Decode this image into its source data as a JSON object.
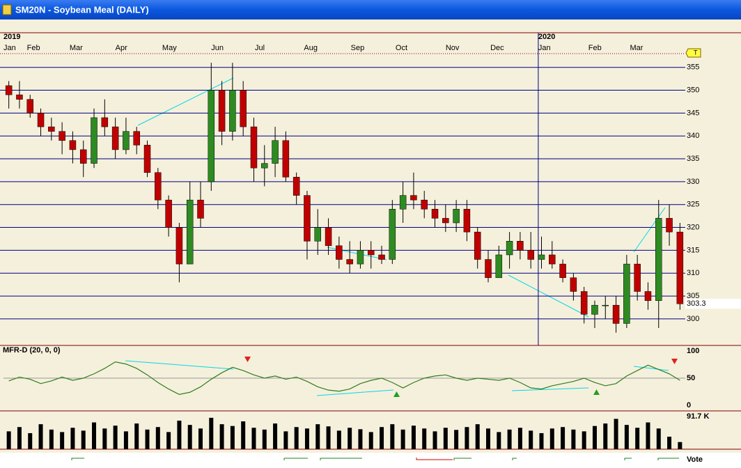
{
  "window_title": "SM20N - Soybean Meal (DAILY)",
  "footer": {
    "vote": "Vote"
  },
  "chart_data": [
    {
      "type": "candlestick",
      "year_labels": [
        {
          "value": 0,
          "label": "2019"
        },
        {
          "value": 50.2,
          "label": "2020"
        }
      ],
      "xlim": [
        0,
        64
      ],
      "xticks": [
        {
          "value": 0,
          "label": "Jan"
        },
        {
          "value": 2.2,
          "label": "Feb"
        },
        {
          "value": 6.2,
          "label": "Mar"
        },
        {
          "value": 10.5,
          "label": "Apr"
        },
        {
          "value": 14.9,
          "label": "May"
        },
        {
          "value": 19.5,
          "label": "Jun"
        },
        {
          "value": 23.6,
          "label": "Jul"
        },
        {
          "value": 28.2,
          "label": "Aug"
        },
        {
          "value": 32.6,
          "label": "Sep"
        },
        {
          "value": 36.8,
          "label": "Oct"
        },
        {
          "value": 41.5,
          "label": "Nov"
        },
        {
          "value": 45.7,
          "label": "Dec"
        },
        {
          "value": 50.2,
          "label": "Jan"
        },
        {
          "value": 54.9,
          "label": "Feb"
        },
        {
          "value": 58.8,
          "label": "Mar"
        }
      ],
      "ylim": [
        294.2,
        358
      ],
      "yticks": [
        300,
        305,
        310,
        315,
        320,
        325,
        330,
        335,
        340,
        345,
        350,
        355
      ],
      "grid": true,
      "up_color": "#2e8b22",
      "down_color": "#c00000",
      "x": [
        0.5,
        1.5,
        2.5,
        3.5,
        4.5,
        5.5,
        6.5,
        7.5,
        8.5,
        9.5,
        10.5,
        11.5,
        12.5,
        13.5,
        14.5,
        15.5,
        16.5,
        17.5,
        18.5,
        19.5,
        20.5,
        21.5,
        22.5,
        23.5,
        24.5,
        25.5,
        26.5,
        27.5,
        28.5,
        29.5,
        30.5,
        31.5,
        32.5,
        33.5,
        34.5,
        35.5,
        36.5,
        37.5,
        38.5,
        39.5,
        40.5,
        41.5,
        42.5,
        43.5,
        44.5,
        45.5,
        46.5,
        47.5,
        48.5,
        49.5,
        50.5,
        51.5,
        52.5,
        53.5,
        54.5,
        55.5,
        56.5,
        57.5,
        58.5,
        59.5,
        60.5,
        61.5,
        62.5,
        63.5
      ],
      "open": [
        351,
        349,
        348,
        345,
        342,
        341,
        339,
        337,
        334,
        344,
        342,
        337,
        341,
        338,
        332,
        326,
        320,
        312,
        326,
        330,
        350,
        341,
        350,
        342,
        333,
        334,
        339,
        331,
        327,
        317,
        320,
        316,
        313,
        312,
        315,
        314,
        313,
        324,
        327,
        326,
        324,
        322,
        321,
        324,
        319,
        313,
        309,
        314,
        317,
        315,
        313,
        314,
        312,
        309,
        306,
        301,
        303,
        303,
        299,
        312,
        306,
        304,
        322,
        319
      ],
      "high": [
        352,
        352,
        349,
        346,
        344,
        343,
        341,
        339,
        346,
        348,
        344,
        344,
        342,
        339,
        333,
        327,
        321,
        330,
        330,
        356,
        352,
        356,
        352,
        344,
        338,
        342,
        341,
        332,
        328,
        324,
        322,
        318,
        317,
        317,
        317,
        316,
        326,
        330,
        332,
        328,
        326,
        325,
        326,
        326,
        320,
        315,
        316,
        319,
        319,
        319,
        318,
        317,
        313,
        310,
        307,
        304,
        305,
        305,
        314,
        314,
        308,
        326,
        325,
        321
      ],
      "low": [
        346,
        346,
        344,
        340,
        339,
        336,
        334,
        331,
        333,
        340,
        335,
        336,
        336,
        331,
        324,
        318,
        308,
        312,
        320,
        328,
        338,
        339,
        340,
        330,
        329,
        331,
        330,
        325,
        313,
        314,
        314,
        311,
        310,
        311,
        311,
        312,
        312,
        321,
        324,
        322,
        320,
        319,
        319,
        317,
        311,
        308,
        309,
        311,
        313,
        311,
        311,
        311,
        308,
        304,
        299,
        298,
        300,
        297,
        298,
        304,
        302,
        298,
        316,
        302
      ],
      "close": [
        349,
        348,
        345,
        342,
        341,
        339,
        337,
        334,
        344,
        342,
        337,
        341,
        338,
        332,
        326,
        320,
        312,
        326,
        322,
        350,
        341,
        350,
        342,
        333,
        334,
        339,
        331,
        327,
        317,
        320,
        316,
        313,
        312,
        315,
        314,
        313,
        324,
        327,
        326,
        324,
        322,
        321,
        324,
        319,
        313,
        309,
        314,
        317,
        315,
        313,
        314,
        312,
        309,
        306,
        301,
        303,
        303,
        299,
        312,
        306,
        304,
        322,
        319,
        303.3
      ]
    },
    {
      "type": "line",
      "title": "MFR-D (20, 0, 0)",
      "color": "#2e7d1e",
      "ylim": [
        -10.3,
        110.3
      ],
      "yticks": [
        0,
        50,
        100
      ],
      "values": [
        45,
        52,
        48,
        40,
        45,
        52,
        46,
        50,
        58,
        68,
        80,
        76,
        68,
        56,
        42,
        30,
        20,
        24,
        34,
        48,
        60,
        70,
        64,
        56,
        50,
        54,
        48,
        52,
        44,
        34,
        28,
        26,
        30,
        40,
        46,
        50,
        42,
        32,
        42,
        50,
        54,
        56,
        50,
        46,
        50,
        48,
        46,
        50,
        42,
        32,
        30,
        36,
        40,
        44,
        50,
        42,
        36,
        40,
        54,
        64,
        74,
        66,
        58,
        46
      ]
    },
    {
      "type": "bar",
      "color": "#000000",
      "ylim": [
        0,
        91.7
      ],
      "yticks": [
        {
          "value": 91.7,
          "label": "91.7 K"
        }
      ],
      "values": [
        50,
        62,
        45,
        70,
        55,
        48,
        60,
        52,
        75,
        58,
        66,
        50,
        72,
        55,
        62,
        48,
        80,
        68,
        58,
        88,
        70,
        65,
        78,
        60,
        55,
        72,
        50,
        62,
        58,
        70,
        64,
        52,
        60,
        56,
        48,
        62,
        70,
        55,
        66,
        58,
        50,
        60,
        54,
        62,
        70,
        58,
        48,
        55,
        60,
        52,
        45,
        58,
        62,
        55,
        50,
        65,
        72,
        85,
        68,
        60,
        75,
        58,
        35,
        20
      ]
    }
  ]
}
